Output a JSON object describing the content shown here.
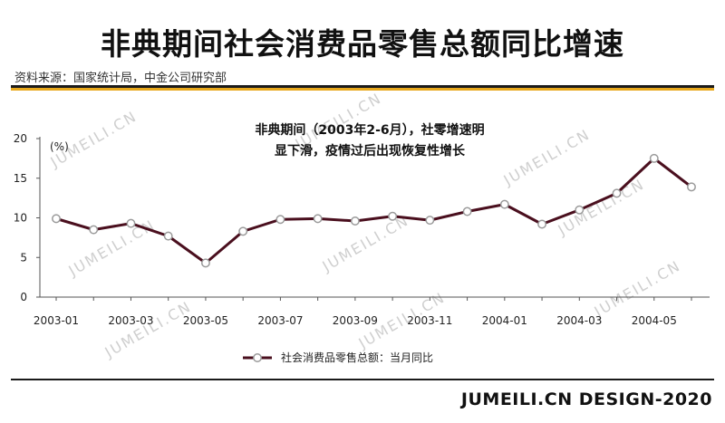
{
  "header": {
    "title": "非典期间社会消费品零售总额同比增速",
    "source": "资料来源：国家统计局，中金公司研究部"
  },
  "footer": {
    "brand": "JUMEILI.CN DESIGN-2020"
  },
  "watermark": "JUMEILI.CN",
  "colors": {
    "line": "#4a0f1e",
    "accent": "#e8a81c",
    "marker_fill": "#ffffff",
    "marker_stroke": "#9a9a9a"
  },
  "chart_data": {
    "type": "line",
    "annotation": [
      "非典期间（2003年2-6月），社零增速明",
      "显下滑，疫情过后出现恢复性增长"
    ],
    "ylabel": "(%)",
    "ylim": [
      0,
      20
    ],
    "yticks": [
      0,
      5,
      10,
      15,
      20
    ],
    "x": [
      "2003-01",
      "2003-02",
      "2003-03",
      "2003-04",
      "2003-05",
      "2003-06",
      "2003-07",
      "2003-08",
      "2003-09",
      "2003-10",
      "2003-11",
      "2003-12",
      "2004-01",
      "2004-02",
      "2004-03",
      "2004-04",
      "2004-05",
      "2004-06"
    ],
    "xticks": [
      "2003-01",
      "2003-03",
      "2003-05",
      "2003-07",
      "2003-09",
      "2003-11",
      "2004-01",
      "2004-03",
      "2004-05"
    ],
    "series": [
      {
        "name": "社会消费品零售总额：当月同比",
        "values": [
          9.9,
          8.5,
          9.3,
          7.7,
          4.3,
          8.3,
          9.8,
          9.9,
          9.6,
          10.2,
          9.7,
          10.8,
          11.7,
          9.2,
          11.0,
          13.1,
          17.5,
          13.9
        ]
      }
    ],
    "grid": false,
    "legend": "bottom-center"
  }
}
